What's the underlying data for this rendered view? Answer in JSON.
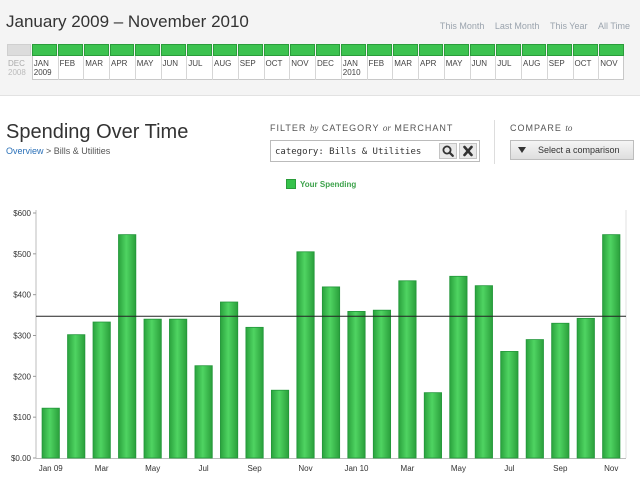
{
  "header": {
    "range_title": "January 2009 – November 2010",
    "links": [
      "This Month",
      "Last Month",
      "This Year",
      "All Time"
    ]
  },
  "timeline": {
    "months": [
      "DEC",
      "JAN",
      "FEB",
      "MAR",
      "APR",
      "MAY",
      "JUN",
      "JUL",
      "AUG",
      "SEP",
      "OCT",
      "NOV",
      "DEC",
      "JAN",
      "FEB",
      "MAR",
      "APR",
      "MAY",
      "JUN",
      "JUL",
      "AUG",
      "SEP",
      "OCT",
      "NOV"
    ],
    "year_labels": [
      {
        "label": "2008",
        "month_index": 0
      },
      {
        "label": "2009",
        "month_index": 1
      },
      {
        "label": "2010",
        "month_index": 13
      }
    ],
    "selected_from_index": 1,
    "selected_to_index": 23,
    "accent": "#3cc24f"
  },
  "section": {
    "title": "Spending Over Time",
    "breadcrumb_link": "Overview",
    "breadcrumb_rest": " > Bills & Utilities",
    "filter_label_a": "FILTER ",
    "filter_label_by": "by",
    "filter_label_b": " CATEGORY ",
    "filter_label_or": "or",
    "filter_label_c": " MERCHANT",
    "filter_value": "category: Bills & Utilities",
    "compare_label_a": "COMPARE ",
    "compare_label_to": "to",
    "compare_button": "Select a comparison"
  },
  "chart_data": {
    "type": "bar",
    "categories": [
      "Jan 09",
      "Feb",
      "Mar",
      "Apr",
      "May",
      "Jun",
      "Jul",
      "Aug",
      "Sep",
      "Oct",
      "Nov",
      "Dec",
      "Jan 10",
      "Feb",
      "Mar",
      "Apr",
      "May",
      "Jun",
      "Jul",
      "Aug",
      "Sep",
      "Oct",
      "Nov"
    ],
    "tick_labels": [
      "Jan 09",
      "",
      "Mar",
      "",
      "May",
      "",
      "Jul",
      "",
      "Sep",
      "",
      "Nov",
      "",
      "Jan 10",
      "",
      "Mar",
      "",
      "May",
      "",
      "Jul",
      "",
      "Sep",
      "",
      "Nov"
    ],
    "series": [
      {
        "name": "Your Spending",
        "values": [
          122,
          302,
          333,
          547,
          340,
          340,
          226,
          382,
          320,
          166,
          505,
          419,
          359,
          362,
          434,
          160,
          445,
          422,
          261,
          290,
          330,
          342,
          547
        ],
        "color": "#36c24b"
      }
    ],
    "average_line": 347,
    "y_ticks": [
      "$0.00",
      "$100",
      "$200",
      "$300",
      "$400",
      "$500",
      "$600"
    ],
    "ylim": [
      0,
      600
    ],
    "grid": false,
    "legend": "top-center"
  }
}
